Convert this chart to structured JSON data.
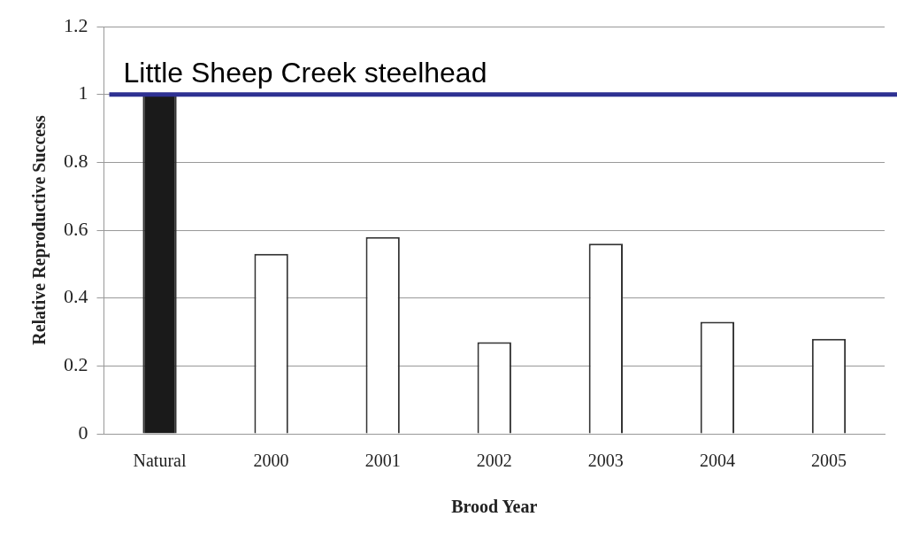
{
  "chart_data": {
    "type": "bar",
    "xlabel": "Brood Year",
    "ylabel": "Relative Reproductive Success",
    "categories": [
      "Natural",
      "2000",
      "2001",
      "2002",
      "2003",
      "2004",
      "2005"
    ],
    "values": [
      1,
      0.53,
      0.58,
      0.27,
      0.56,
      0.33,
      0.28
    ],
    "colors": [
      "#1a1a1a",
      "#ffffff",
      "#ffffff",
      "#ffffff",
      "#ffffff",
      "#ffffff",
      "#ffffff"
    ],
    "ylim": [
      0,
      1.2
    ],
    "yticks": [
      0,
      0.2,
      0.4,
      0.6,
      0.8,
      1,
      1.2
    ],
    "grid": "y",
    "ref_lines": [
      {
        "axis": "y",
        "value": 1,
        "label": "Little Sheep Creek steelhead",
        "color": "#2e3192"
      }
    ]
  }
}
